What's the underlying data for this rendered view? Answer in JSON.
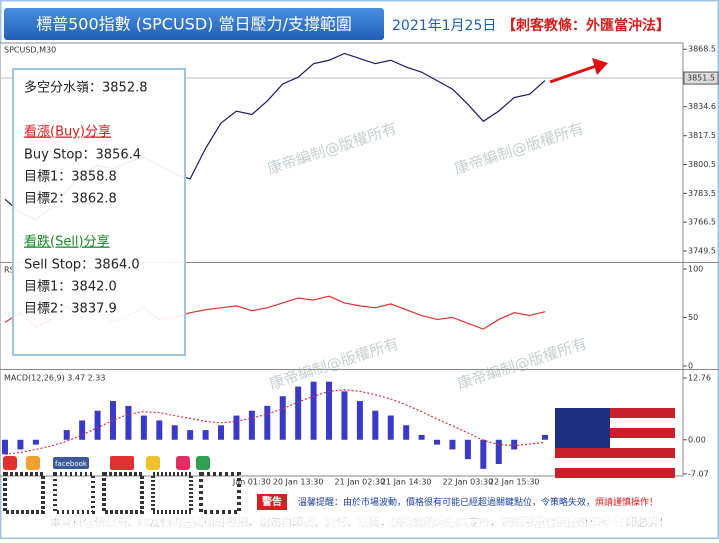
{
  "header": {
    "title": "標普500指數 (SPCUSD) 當日壓力/支撐範圍",
    "date": "2021年1月25日",
    "tagline": "【刺客教條：外匯當沖法】"
  },
  "panel": {
    "pivot": "多空分水嶺：3852.8",
    "buy_heading": "看漲(Buy)分享",
    "buy_lines": [
      "Buy Stop：3856.4",
      "目標1：3858.8",
      "目標2：3862.8"
    ],
    "sell_heading": "看跌(Sell)分享",
    "sell_lines": [
      "Sell Stop：3864.0",
      "目標1：3842.0",
      "目標2：3837.9"
    ]
  },
  "watermark": "康帝編制@版權所有",
  "chart_data": [
    {
      "type": "line",
      "label": "SPCUSD,M30",
      "color": "#1a1a6a",
      "values": [
        3780,
        3772,
        3768,
        3775,
        3785,
        3795,
        3800,
        3798,
        3802,
        3805,
        3800,
        3795,
        3792,
        3810,
        3825,
        3832,
        3830,
        3838,
        3848,
        3852,
        3860,
        3862,
        3866,
        3863,
        3860,
        3862,
        3858,
        3855,
        3850,
        3845,
        3836,
        3826,
        3832,
        3840,
        3842,
        3850
      ],
      "ylim": [
        3743,
        3871
      ],
      "yticks": [
        3868.5,
        3834.6,
        3817.5,
        3800.5,
        3783.5,
        3766.5,
        3749.5
      ],
      "last_price": 3851.5
    },
    {
      "type": "line",
      "label": "RSI(",
      "color": "#e03030",
      "values": [
        45,
        55,
        40,
        48,
        62,
        50,
        58,
        45,
        52,
        60,
        48,
        50,
        55,
        58,
        60,
        62,
        57,
        60,
        65,
        70,
        68,
        72,
        65,
        62,
        60,
        64,
        58,
        52,
        48,
        50,
        44,
        38,
        48,
        55,
        52,
        56
      ],
      "ylim": [
        0,
        100
      ],
      "yticks": [
        100,
        50,
        0
      ]
    },
    {
      "type": "bar",
      "label": "MACD(12,26,9) 3.47 2.33",
      "categories": [
        null,
        null,
        null,
        null,
        null,
        null,
        null,
        null,
        null,
        null,
        null,
        null,
        null,
        null,
        null,
        null,
        "Jan 01:30",
        null,
        null,
        "20 Jan 13:30",
        null,
        null,
        null,
        "21 Jan 02:30",
        null,
        null,
        "21 Jan 14:30",
        null,
        null,
        null,
        "22 Jan 03:30",
        null,
        null,
        "22 Jan 15:30",
        null,
        null
      ],
      "series": [
        {
          "kind": "bar",
          "color": "#3a3ac8",
          "values": [
            -3,
            -2,
            -1,
            0,
            2,
            4,
            6,
            8,
            7,
            5,
            4,
            3,
            2,
            2,
            3,
            5,
            6,
            7,
            9,
            11,
            12,
            12,
            10,
            8,
            6,
            5,
            3,
            1,
            -1,
            -2,
            -4,
            -6,
            -5,
            -2,
            0,
            1
          ]
        },
        {
          "kind": "line",
          "color": "#e03030",
          "values": [
            -3,
            -2.6,
            -2,
            -1.3,
            -0.3,
            1,
            2.5,
            4,
            5.3,
            5.8,
            5.6,
            5,
            4.4,
            3.8,
            3.5,
            3.8,
            4.5,
            5.3,
            6.4,
            7.8,
            9,
            10,
            10.3,
            10,
            9.3,
            8.4,
            7.2,
            5.8,
            4.3,
            2.9,
            1.4,
            -0.1,
            -1,
            -1.2,
            -0.9,
            -0.5
          ]
        }
      ],
      "ylim": [
        -7.07,
        12.76
      ],
      "yticks": [
        12.76,
        {
          "value": 0,
          "label": "0.00"
        },
        -7.07
      ]
    }
  ],
  "footer": {
    "social": "facebook",
    "warning_badge": "警告",
    "warning": "溫馨提醒：由於市場波動，價格很有可能已經超過關鍵點位，令策略失效，",
    "warning_emphasis": "煩請謹慎操作！",
    "notice": "本資料僅供學員、匯友們的盤勢研討專用，切勿自印製、流傳、販售，感謝您的愛護與支持，煩請尊重智慧產財權＠ 翻印必究！"
  }
}
